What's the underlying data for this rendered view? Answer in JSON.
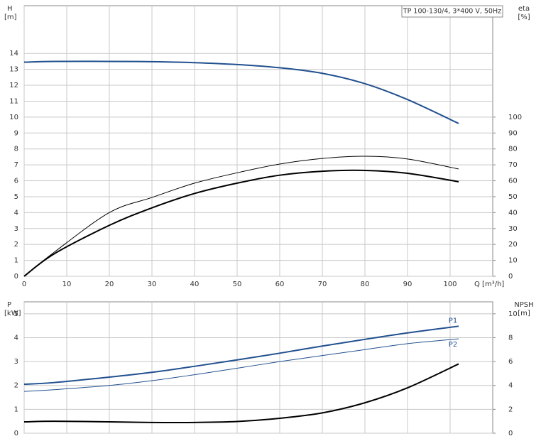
{
  "chart_data": [
    {
      "type": "line",
      "title": "TP 100-130/4, 3*400 V, 50Hz",
      "ylabel": "H",
      "yunit": "[m]",
      "y2label": "eta",
      "y2unit": "[%]",
      "xlabel": "Q [m³/h]",
      "xlim": [
        0,
        110
      ],
      "xticks": [
        0,
        10,
        20,
        30,
        40,
        50,
        60,
        70,
        80,
        90,
        100
      ],
      "ylim": [
        0,
        17
      ],
      "yticks": [
        0,
        1,
        2,
        3,
        4,
        5,
        6,
        7,
        8,
        9,
        10,
        11,
        12,
        13,
        14
      ],
      "y2lim": [
        0,
        170
      ],
      "y2ticks": [
        0,
        10,
        20,
        30,
        40,
        50,
        60,
        70,
        80,
        90,
        100
      ],
      "grid": true,
      "show_xtick_labels": true,
      "x": [
        0,
        7,
        20,
        30,
        40,
        50,
        60,
        70,
        80,
        90,
        102
      ],
      "series": [
        {
          "color": "#21508f",
          "width": 2,
          "values": [
            13.45,
            13.5,
            13.5,
            13.48,
            13.42,
            13.3,
            13.1,
            12.75,
            12.1,
            11.1,
            9.6
          ]
        },
        {
          "color": "#000000",
          "width": 1,
          "axis": "y2",
          "values": [
            0,
            15,
            40,
            49.5,
            58.5,
            65,
            70.5,
            74,
            75.4,
            73.7,
            67.4
          ]
        },
        {
          "color": "#000000",
          "width": 2,
          "axis": "y2",
          "values": [
            0,
            14,
            32,
            43,
            52,
            58.5,
            63.5,
            66,
            66.5,
            64.7,
            59.4
          ]
        }
      ]
    },
    {
      "type": "line",
      "ylabel": "P",
      "yunit": "[kW]",
      "y2label": "NPSH",
      "y2unit": "[m]",
      "xlim": [
        0,
        110
      ],
      "xticks": [
        0,
        10,
        20,
        30,
        40,
        50,
        60,
        70,
        80,
        90,
        100
      ],
      "ylim": [
        0,
        5.5
      ],
      "yticks": [
        0,
        1,
        2,
        3,
        4,
        5
      ],
      "y2lim": [
        0,
        11
      ],
      "y2ticks": [
        0,
        2,
        4,
        6,
        8,
        10
      ],
      "grid": true,
      "show_xtick_labels": false,
      "x": [
        0,
        7,
        20,
        30,
        40,
        50,
        60,
        70,
        80,
        90,
        102
      ],
      "series": [
        {
          "name": "P1",
          "color": "#21508f",
          "width": 2,
          "values": [
            2.05,
            2.12,
            2.35,
            2.55,
            2.8,
            3.07,
            3.35,
            3.65,
            3.93,
            4.2,
            4.48
          ]
        },
        {
          "name": "P2",
          "color": "#21508f",
          "width": 1,
          "values": [
            1.75,
            1.82,
            2.0,
            2.2,
            2.45,
            2.72,
            3.0,
            3.25,
            3.5,
            3.75,
            3.95
          ]
        },
        {
          "color": "#000000",
          "width": 2,
          "axis": "y2",
          "values": [
            0.95,
            1.0,
            0.95,
            0.9,
            0.9,
            0.98,
            1.25,
            1.7,
            2.55,
            3.8,
            5.8
          ]
        }
      ]
    }
  ]
}
